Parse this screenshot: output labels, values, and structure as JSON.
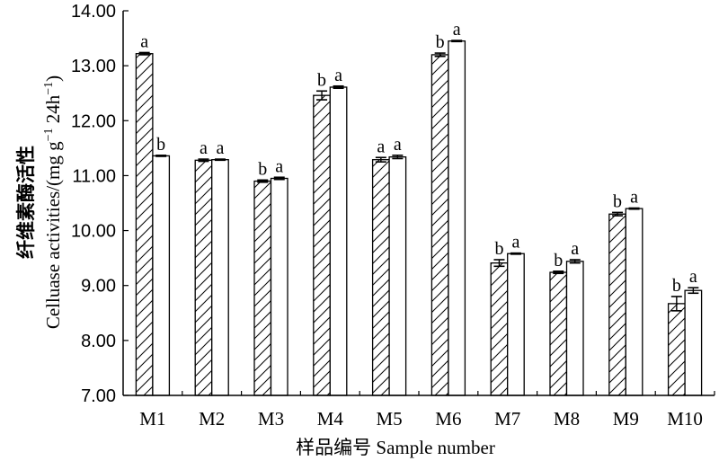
{
  "chart_data": {
    "type": "bar",
    "title": "",
    "xlabel": "样品编号 Sample number",
    "ylabel_cn": "纤维素酶活性",
    "ylabel_en": "Celluase activities/(mg g",
    "ylabel_sup1": "−1",
    "ylabel_mid": " 24h",
    "ylabel_sup2": "−1",
    "ylabel_end": ")",
    "ylim": [
      7.0,
      14.0
    ],
    "yticks": [
      "7.00",
      "8.00",
      "9.00",
      "10.00",
      "11.00",
      "12.00",
      "13.00",
      "14.00"
    ],
    "categories": [
      "M1",
      "M2",
      "M3",
      "M4",
      "M5",
      "M6",
      "M7",
      "M8",
      "M9",
      "M10"
    ],
    "series": [
      {
        "pattern": "hatched",
        "values": [
          13.22,
          11.28,
          10.9,
          12.46,
          11.29,
          13.2,
          9.41,
          9.24,
          10.3,
          8.67
        ],
        "errors": [
          0.02,
          0.02,
          0.02,
          0.08,
          0.04,
          0.03,
          0.06,
          0.02,
          0.03,
          0.13
        ],
        "letters": [
          "a",
          "a",
          "b",
          "b",
          "a",
          "b",
          "b",
          "b",
          "b",
          "b"
        ]
      },
      {
        "pattern": "white",
        "values": [
          11.36,
          11.29,
          10.95,
          12.61,
          11.34,
          13.45,
          9.58,
          9.44,
          10.4,
          8.91
        ],
        "errors": [
          0.01,
          0.01,
          0.02,
          0.02,
          0.03,
          0.01,
          0.01,
          0.03,
          0.01,
          0.05
        ],
        "letters": [
          "b",
          "a",
          "a",
          "a",
          "a",
          "a",
          "a",
          "a",
          "a",
          "a"
        ]
      }
    ]
  }
}
